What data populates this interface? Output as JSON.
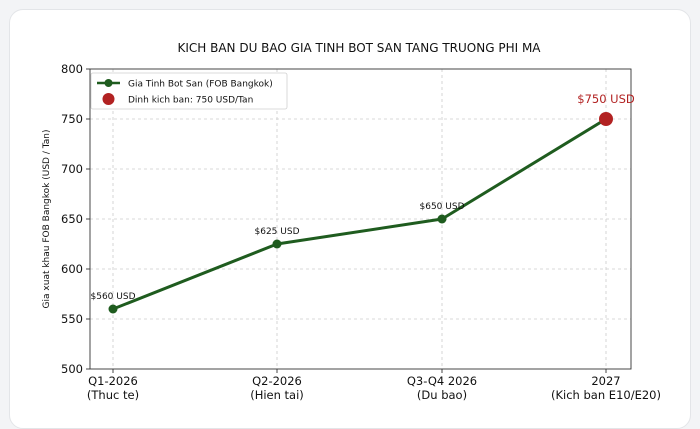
{
  "colors": {
    "line": "#1f5c1f",
    "peak": "#b22222",
    "grid": "#cccccc"
  },
  "chart_data": {
    "type": "line",
    "title": "KICH BAN DU BAO GIA TINH BOT SAN TANG TRUONG PHI MA",
    "ylabel": "Gia xuat khau FOB Bangkok (USD / Tan)",
    "xlabel": "",
    "ylim": [
      500,
      800
    ],
    "yticks": [
      500,
      550,
      600,
      650,
      700,
      750,
      800
    ],
    "grid": true,
    "legend_position": "top-left",
    "categories": [
      [
        "Q1-2026",
        "(Thuc te)"
      ],
      [
        "Q2-2026",
        "(Hien tai)"
      ],
      [
        "Q3-Q4 2026",
        "(Du bao)"
      ],
      [
        "2027",
        "(Kich ban E10/E20)"
      ]
    ],
    "series": [
      {
        "name": "Gia Tinh Bot San (FOB Bangkok)",
        "values": [
          560,
          625,
          650,
          750
        ]
      }
    ],
    "data_labels": [
      "$560 USD",
      "$625 USD",
      "$650 USD",
      "$750 USD"
    ],
    "peak": {
      "name": "Dinh kich ban: 750 USD/Tan",
      "index": 3,
      "value": 750
    }
  }
}
